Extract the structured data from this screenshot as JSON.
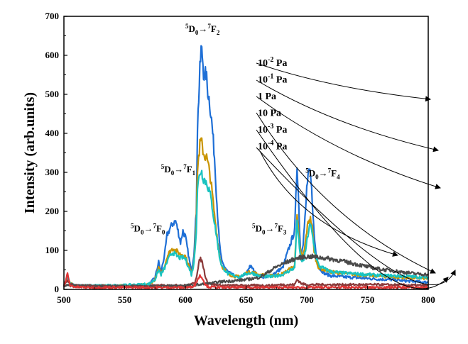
{
  "chart_data": {
    "type": "line",
    "title": "",
    "xlabel": "Wavelength (nm)",
    "ylabel": "Intensity (arb.units)",
    "xlim": [
      500,
      800
    ],
    "ylim": [
      0,
      700
    ],
    "xticks": [
      500,
      550,
      600,
      650,
      700,
      750,
      800
    ],
    "yticks": [
      0,
      100,
      200,
      300,
      400,
      500,
      600,
      700
    ],
    "grid": false,
    "legend_placement": "top-center",
    "legend": [
      {
        "base": "10",
        "exp": "-2",
        "unit": "Pa",
        "series_index": 0
      },
      {
        "base": "10",
        "exp": "-1",
        "unit": "Pa",
        "series_index": 1
      },
      {
        "base": "1",
        "exp": "",
        "unit": "Pa",
        "series_index": 2
      },
      {
        "base": "10",
        "exp": "",
        "unit": "Pa",
        "series_index": 3
      },
      {
        "base": "10",
        "exp": "-3",
        "unit": "Pa",
        "series_index": 4
      },
      {
        "base": "10",
        "exp": "-4",
        "unit": "Pa",
        "series_index": 5
      }
    ],
    "annotations": [
      {
        "x": 600,
        "y": 660,
        "text": "5D0→7F2"
      },
      {
        "x": 580,
        "y": 300,
        "text": "5D0→7F1"
      },
      {
        "x": 555,
        "y": 148,
        "text": "5D0→7F0"
      },
      {
        "x": 655,
        "y": 148,
        "text": "5D0→7F3"
      },
      {
        "x": 699,
        "y": 290,
        "text": "5D0→7F4"
      }
    ],
    "series": [
      {
        "color": "#1e6fd6",
        "x": [
          500,
          503,
          505,
          510,
          520,
          530,
          540,
          550,
          560,
          570,
          575,
          578,
          580,
          583,
          585,
          588,
          590,
          592,
          594,
          596,
          598,
          600,
          603,
          605,
          607,
          609,
          610,
          612,
          613,
          614,
          615,
          616,
          617,
          618,
          620,
          622,
          624,
          626,
          628,
          630,
          635,
          640,
          645,
          650,
          653,
          655,
          658,
          660,
          665,
          670,
          680,
          690,
          692,
          693,
          694,
          695,
          697,
          699,
          700,
          701,
          702,
          703,
          704,
          705,
          706,
          708,
          710,
          715,
          720,
          730,
          740,
          750,
          760,
          770,
          780,
          790,
          800
        ],
        "y": [
          10,
          35,
          15,
          10,
          8,
          8,
          8,
          9,
          10,
          12,
          30,
          70,
          45,
          90,
          140,
          160,
          170,
          175,
          150,
          120,
          150,
          135,
          80,
          45,
          90,
          200,
          420,
          560,
          615,
          600,
          560,
          540,
          555,
          520,
          480,
          420,
          340,
          220,
          120,
          70,
          45,
          35,
          30,
          40,
          60,
          55,
          40,
          35,
          32,
          35,
          55,
          150,
          320,
          250,
          160,
          90,
          120,
          200,
          260,
          290,
          300,
          290,
          255,
          200,
          140,
          80,
          55,
          40,
          35,
          32,
          30,
          28,
          26,
          25,
          22,
          20,
          18
        ]
      },
      {
        "color": "#c99400",
        "x": [
          500,
          503,
          505,
          510,
          520,
          530,
          540,
          550,
          560,
          570,
          575,
          578,
          580,
          583,
          585,
          588,
          590,
          592,
          594,
          596,
          598,
          600,
          603,
          605,
          607,
          609,
          610,
          612,
          613,
          614,
          615,
          616,
          617,
          618,
          620,
          622,
          624,
          626,
          628,
          630,
          635,
          640,
          645,
          650,
          655,
          660,
          670,
          680,
          690,
          692,
          694,
          696,
          698,
          700,
          701,
          702,
          703,
          704,
          705,
          706,
          708,
          710,
          720,
          740,
          760,
          780,
          800
        ],
        "y": [
          12,
          30,
          15,
          10,
          9,
          9,
          9,
          10,
          11,
          12,
          25,
          55,
          40,
          60,
          85,
          100,
          105,
          100,
          95,
          90,
          90,
          85,
          60,
          40,
          70,
          170,
          310,
          370,
          380,
          365,
          350,
          340,
          345,
          330,
          300,
          250,
          190,
          140,
          90,
          60,
          40,
          34,
          32,
          42,
          45,
          38,
          34,
          40,
          60,
          200,
          110,
          80,
          100,
          150,
          170,
          180,
          180,
          170,
          140,
          100,
          70,
          55,
          45,
          38,
          34,
          30,
          28
        ]
      },
      {
        "color": "#18c3c0",
        "x": [
          500,
          503,
          505,
          510,
          520,
          530,
          540,
          550,
          560,
          570,
          575,
          578,
          580,
          583,
          585,
          588,
          590,
          592,
          594,
          596,
          598,
          600,
          603,
          605,
          607,
          609,
          610,
          612,
          613,
          614,
          615,
          616,
          618,
          620,
          622,
          624,
          626,
          628,
          630,
          635,
          640,
          645,
          650,
          655,
          660,
          670,
          680,
          690,
          692,
          694,
          696,
          698,
          700,
          702,
          703,
          704,
          706,
          708,
          710,
          720,
          730,
          740,
          750,
          760,
          770,
          780,
          790,
          800
        ],
        "y": [
          12,
          30,
          15,
          10,
          10,
          10,
          10,
          11,
          12,
          14,
          25,
          50,
          38,
          55,
          70,
          90,
          95,
          88,
          84,
          80,
          82,
          78,
          55,
          38,
          65,
          150,
          260,
          300,
          305,
          295,
          285,
          280,
          270,
          250,
          215,
          170,
          130,
          85,
          60,
          40,
          35,
          32,
          40,
          42,
          35,
          32,
          38,
          55,
          180,
          100,
          70,
          80,
          120,
          160,
          165,
          150,
          110,
          80,
          60,
          45,
          42,
          40,
          38,
          36,
          35,
          34,
          32,
          30
        ]
      },
      {
        "color": "#8b3a3a",
        "x": [
          500,
          503,
          505,
          510,
          520,
          530,
          540,
          550,
          560,
          570,
          580,
          590,
          600,
          605,
          608,
          610,
          612,
          614,
          616,
          618,
          620,
          625,
          630,
          640,
          650,
          660,
          670,
          680,
          690,
          692,
          694,
          696,
          700,
          710,
          720,
          740,
          760,
          780,
          800
        ],
        "y": [
          10,
          25,
          14,
          10,
          9,
          9,
          8,
          8,
          8,
          8,
          10,
          10,
          10,
          12,
          20,
          45,
          80,
          70,
          40,
          20,
          15,
          12,
          10,
          10,
          10,
          10,
          10,
          12,
          12,
          25,
          20,
          14,
          12,
          12,
          12,
          12,
          12,
          11,
          10
        ]
      },
      {
        "color": "#4a4a4a",
        "x": [
          500,
          510,
          520,
          530,
          540,
          550,
          560,
          570,
          580,
          590,
          600,
          610,
          620,
          630,
          640,
          650,
          660,
          665,
          670,
          675,
          680,
          685,
          690,
          695,
          700,
          705,
          710,
          715,
          720,
          730,
          740,
          750,
          760,
          770,
          780,
          790,
          800
        ],
        "y": [
          10,
          9,
          8,
          8,
          8,
          8,
          8,
          8,
          9,
          9,
          10,
          12,
          15,
          20,
          22,
          25,
          30,
          38,
          48,
          58,
          65,
          72,
          78,
          82,
          84,
          84,
          82,
          80,
          78,
          72,
          65,
          58,
          52,
          48,
          44,
          40,
          38
        ]
      },
      {
        "color": "#e03535",
        "x": [
          500,
          503,
          505,
          510,
          520,
          530,
          540,
          550,
          560,
          570,
          580,
          590,
          600,
          605,
          608,
          610,
          612,
          614,
          616,
          618,
          620,
          630,
          640,
          650,
          660,
          680,
          700,
          720,
          760,
          800
        ],
        "y": [
          6,
          40,
          10,
          6,
          5,
          5,
          5,
          5,
          5,
          5,
          5,
          5,
          5,
          6,
          12,
          25,
          35,
          30,
          15,
          8,
          6,
          5,
          5,
          5,
          5,
          5,
          5,
          5,
          5,
          5
        ]
      }
    ]
  }
}
